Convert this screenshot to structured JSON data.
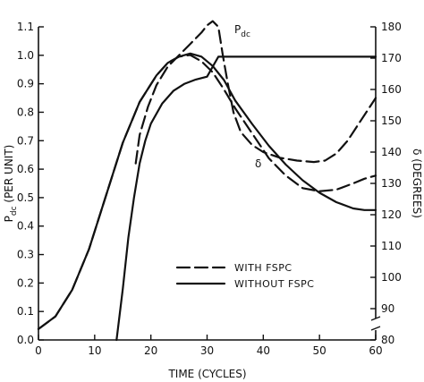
{
  "chart_data": {
    "type": "line",
    "xlabel": "TIME (CYCLES)",
    "ylabel_left": "P_dc (PER UNIT)",
    "ylabel_left_main": "P",
    "ylabel_left_sub": "dc",
    "ylabel_left_rest": " (PER UNIT)",
    "ylabel_right": "δ (DEGREES)",
    "xlim": [
      0,
      60
    ],
    "ylim_left": [
      0.0,
      1.1
    ],
    "ylim_right": [
      80,
      180
    ],
    "x_ticks": [
      0,
      10,
      20,
      30,
      40,
      50,
      60
    ],
    "x_tick_labels": [
      "0",
      "10",
      "20",
      "30",
      "40",
      "50",
      "60"
    ],
    "left_ticks": [
      0.0,
      0.1,
      0.2,
      0.3,
      0.4,
      0.5,
      0.6,
      0.7,
      0.8,
      0.9,
      1.0,
      1.1
    ],
    "left_tick_labels": [
      "0.0",
      "0.1",
      "0.2",
      "0.3",
      "0.4",
      "0.5",
      "0.6",
      "0.7",
      "0.8",
      "0.9",
      "1.0",
      "1.1"
    ],
    "right_ticks": [
      80,
      90,
      100,
      110,
      120,
      130,
      140,
      150,
      160,
      170,
      180
    ],
    "right_tick_labels": [
      "80",
      "90",
      "100",
      "110",
      "120",
      "130",
      "140",
      "150",
      "160",
      "170",
      "180"
    ],
    "right_axis_break": true,
    "grid": false,
    "legend_position": "bottom-center",
    "annotations": {
      "pdc_main": "P",
      "pdc_sub": "dc",
      "delta": "δ"
    },
    "series": [
      {
        "name": "WITH FSPC",
        "quantity": "delta",
        "axis": "right",
        "style": "dashed",
        "points": [
          [
            0,
            83.5
          ],
          [
            3,
            87.5
          ],
          [
            6,
            96
          ],
          [
            9,
            109
          ],
          [
            12,
            126
          ],
          [
            15,
            143
          ],
          [
            18,
            156
          ],
          [
            21,
            164.5
          ],
          [
            23,
            168.5
          ],
          [
            25,
            170.5
          ],
          [
            27,
            171
          ],
          [
            29,
            169
          ],
          [
            31,
            165.5
          ],
          [
            33,
            160
          ],
          [
            35,
            154
          ],
          [
            38,
            146
          ],
          [
            41,
            138
          ],
          [
            44,
            132.5
          ],
          [
            47,
            128.5
          ],
          [
            50,
            127.5
          ],
          [
            53,
            128
          ],
          [
            56,
            130
          ],
          [
            58,
            131.5
          ],
          [
            60,
            132.5
          ]
        ]
      },
      {
        "name": "WITH FSPC",
        "quantity": "pdc",
        "axis": "left",
        "style": "dashed",
        "points": [
          [
            17.3,
            0.62
          ],
          [
            18,
            0.72
          ],
          [
            19.5,
            0.82
          ],
          [
            21,
            0.895
          ],
          [
            23,
            0.96
          ],
          [
            25,
            1.0
          ],
          [
            27,
            1.04
          ],
          [
            29,
            1.08
          ],
          [
            30,
            1.105
          ],
          [
            31,
            1.12
          ],
          [
            32,
            1.1
          ],
          [
            32.8,
            1.0
          ],
          [
            33.7,
            0.9
          ],
          [
            34.7,
            0.8
          ],
          [
            36,
            0.73
          ],
          [
            38,
            0.685
          ],
          [
            40,
            0.66
          ],
          [
            43,
            0.64
          ],
          [
            46,
            0.63
          ],
          [
            49,
            0.625
          ],
          [
            51,
            0.63
          ],
          [
            53,
            0.655
          ],
          [
            55,
            0.7
          ],
          [
            57,
            0.76
          ],
          [
            59,
            0.82
          ],
          [
            60,
            0.85
          ]
        ]
      },
      {
        "name": "WITHOUT FSPC",
        "quantity": "delta",
        "axis": "right",
        "style": "solid",
        "points": [
          [
            0,
            83.5
          ],
          [
            3,
            87.5
          ],
          [
            6,
            96
          ],
          [
            9,
            109
          ],
          [
            12,
            126
          ],
          [
            15,
            143
          ],
          [
            18,
            156
          ],
          [
            21,
            164.5
          ],
          [
            23,
            168.5
          ],
          [
            25,
            170.5
          ],
          [
            27,
            171.5
          ],
          [
            29,
            170.5
          ],
          [
            31,
            167.5
          ],
          [
            33,
            163
          ],
          [
            35,
            156.5
          ],
          [
            38,
            149
          ],
          [
            41,
            142
          ],
          [
            44,
            136
          ],
          [
            47,
            131
          ],
          [
            50,
            127
          ],
          [
            53,
            124
          ],
          [
            56,
            122
          ],
          [
            58,
            121.5
          ],
          [
            60,
            121.5
          ]
        ]
      },
      {
        "name": "WITHOUT FSPC",
        "quantity": "pdc",
        "axis": "left",
        "style": "solid",
        "points": [
          [
            13.9,
            0.0
          ],
          [
            15,
            0.18
          ],
          [
            16,
            0.36
          ],
          [
            17,
            0.5
          ],
          [
            18,
            0.62
          ],
          [
            19,
            0.7
          ],
          [
            20,
            0.76
          ],
          [
            22,
            0.83
          ],
          [
            24,
            0.875
          ],
          [
            26,
            0.9
          ],
          [
            28,
            0.915
          ],
          [
            30,
            0.925
          ],
          [
            31,
            0.96
          ],
          [
            32,
            0.995
          ],
          [
            40,
            0.995
          ],
          [
            50,
            0.995
          ],
          [
            60,
            0.995
          ]
        ]
      }
    ]
  }
}
